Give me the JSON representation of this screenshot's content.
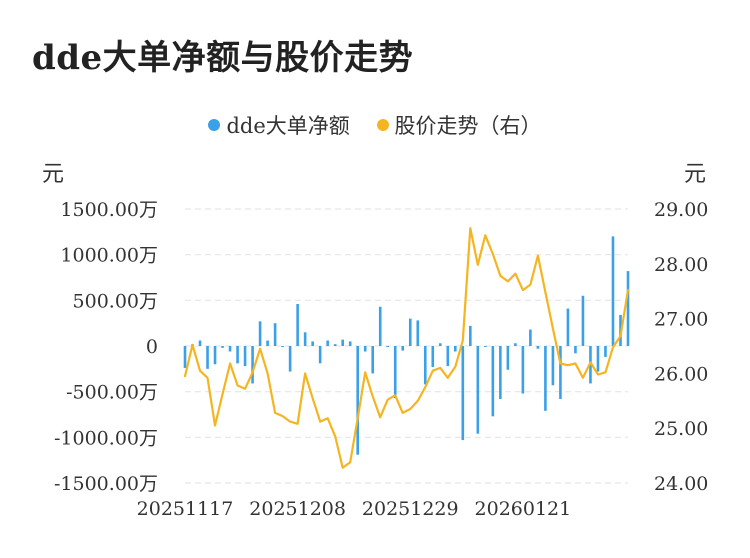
{
  "chart_data": {
    "type": "bar+line",
    "title": "dde大单净额与股价走势",
    "legend": [
      {
        "name": "dde大单净额",
        "color": "#3aa0e8"
      },
      {
        "name": "股价走势（右）",
        "color": "#f4b521"
      }
    ],
    "left_unit": "元",
    "right_unit": "元",
    "left_ticks": [
      "1500.00万",
      "1000.00万",
      "500.00万",
      "0",
      "-500.00万",
      "-1000.00万",
      "-1500.00万"
    ],
    "left_range": [
      -1500,
      1500
    ],
    "right_ticks": [
      "29.00",
      "28.00",
      "27.00",
      "26.00",
      "25.00",
      "24.00"
    ],
    "right_range": [
      24,
      29
    ],
    "x_tick_labels": [
      {
        "label": "20251117",
        "index": 0
      },
      {
        "label": "20251208",
        "index": 15
      },
      {
        "label": "20251229",
        "index": 30
      },
      {
        "label": "20260121",
        "index": 45
      }
    ],
    "bar_values": [
      -240,
      20,
      60,
      -250,
      -200,
      -20,
      -60,
      -190,
      -220,
      -410,
      270,
      60,
      250,
      -10,
      -280,
      460,
      150,
      50,
      -190,
      60,
      20,
      70,
      50,
      -1190,
      -60,
      -300,
      430,
      -10,
      -570,
      -50,
      300,
      280,
      -420,
      -230,
      30,
      -220,
      -60,
      -1030,
      220,
      -960,
      -10,
      -770,
      -580,
      -260,
      30,
      -520,
      180,
      -30,
      -710,
      -430,
      -580,
      410,
      -80,
      550,
      -410,
      -280,
      -120,
      1200,
      340,
      820
    ],
    "price_values": [
      25.95,
      26.52,
      26.05,
      25.92,
      25.05,
      25.62,
      26.18,
      25.78,
      25.72,
      26.02,
      26.45,
      26.0,
      25.28,
      25.22,
      25.12,
      25.08,
      26.0,
      25.55,
      25.12,
      25.18,
      24.85,
      24.28,
      24.38,
      25.18,
      26.02,
      25.58,
      25.2,
      25.52,
      25.6,
      25.28,
      25.35,
      25.5,
      25.75,
      26.05,
      26.1,
      25.92,
      26.12,
      26.6,
      28.65,
      27.98,
      28.52,
      28.18,
      27.78,
      27.68,
      27.82,
      27.52,
      27.62,
      28.15,
      27.48,
      26.82,
      26.18,
      26.15,
      26.18,
      25.92,
      26.2,
      25.98,
      26.02,
      26.48,
      26.68,
      27.52
    ]
  }
}
